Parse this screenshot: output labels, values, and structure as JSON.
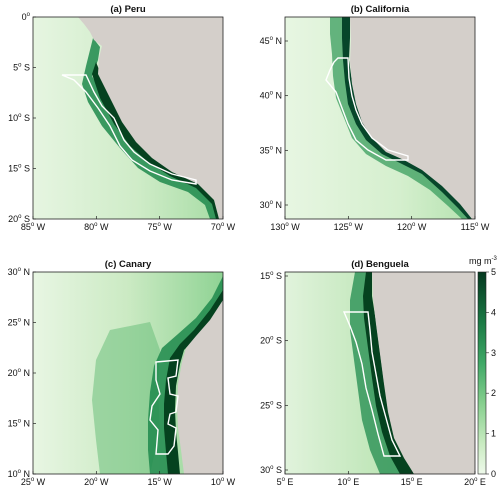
{
  "colors": {
    "land": "#d4cfca",
    "ocean_low": "#e4f5df",
    "ocean_high": "#04381f",
    "boundary": "#ffffff"
  },
  "colorbar": {
    "unit_main": "mg m",
    "unit_exp": "-3",
    "ticks": [
      "0",
      "1",
      "2",
      "3",
      "4",
      "5"
    ],
    "range": [
      0,
      5
    ]
  },
  "panels": [
    {
      "key": "peru",
      "title": "(a) Peru",
      "lon_ticks": [
        {
          "value": "85",
          "hemi": "W"
        },
        {
          "value": "80",
          "hemi": "W"
        },
        {
          "value": "75",
          "hemi": "W"
        },
        {
          "value": "70",
          "hemi": "W"
        }
      ],
      "lat_ticks": [
        {
          "value": "0",
          "hemi": ""
        },
        {
          "value": "5",
          "hemi": "S"
        },
        {
          "value": "10",
          "hemi": "S"
        },
        {
          "value": "15",
          "hemi": "S"
        },
        {
          "value": "20",
          "hemi": "S"
        }
      ]
    },
    {
      "key": "california",
      "title": "(b) California",
      "lon_ticks": [
        {
          "value": "130",
          "hemi": "W"
        },
        {
          "value": "125",
          "hemi": "W"
        },
        {
          "value": "120",
          "hemi": "W"
        },
        {
          "value": "115",
          "hemi": "W"
        }
      ],
      "lat_ticks": [
        {
          "value": "45",
          "hemi": "N"
        },
        {
          "value": "40",
          "hemi": "N"
        },
        {
          "value": "35",
          "hemi": "N"
        },
        {
          "value": "30",
          "hemi": "N"
        }
      ]
    },
    {
      "key": "canary",
      "title": "(c) Canary",
      "lon_ticks": [
        {
          "value": "25",
          "hemi": "W"
        },
        {
          "value": "20",
          "hemi": "W"
        },
        {
          "value": "15",
          "hemi": "W"
        },
        {
          "value": "10",
          "hemi": "W"
        }
      ],
      "lat_ticks": [
        {
          "value": "30",
          "hemi": "N"
        },
        {
          "value": "25",
          "hemi": "N"
        },
        {
          "value": "20",
          "hemi": "N"
        },
        {
          "value": "15",
          "hemi": "N"
        },
        {
          "value": "10",
          "hemi": "N"
        }
      ]
    },
    {
      "key": "benguela",
      "title": "(d) Benguela",
      "lon_ticks": [
        {
          "value": "5",
          "hemi": "E"
        },
        {
          "value": "10",
          "hemi": "E"
        },
        {
          "value": "15",
          "hemi": "E"
        },
        {
          "value": "20",
          "hemi": "E"
        }
      ],
      "lat_ticks": [
        {
          "value": "15",
          "hemi": "S"
        },
        {
          "value": "20",
          "hemi": "S"
        },
        {
          "value": "25",
          "hemi": "S"
        },
        {
          "value": "30",
          "hemi": "S"
        }
      ]
    }
  ]
}
